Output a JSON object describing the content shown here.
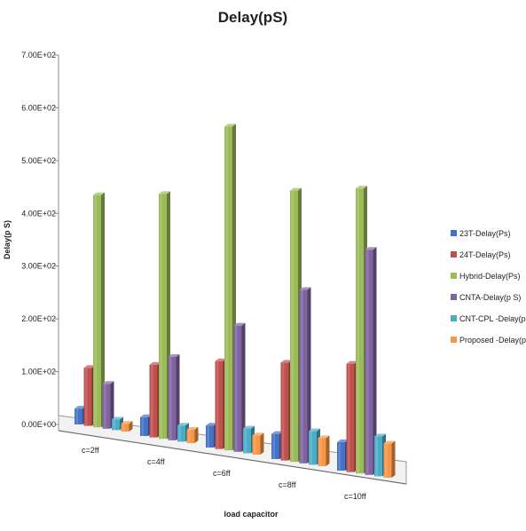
{
  "chart_data": {
    "type": "bar",
    "title": "Delay(pS)",
    "xlabel": "load capacitor",
    "ylabel": "Delay(p S)",
    "ylim": [
      0,
      700
    ],
    "y_ticks": [
      "0.00E+00",
      "1.00E+02",
      "2.00E+02",
      "3.00E+02",
      "4.00E+02",
      "5.00E+02",
      "6.00E+02",
      "7.00E+02"
    ],
    "categories": [
      "c=2ff",
      "c=4ff",
      "c=6ff",
      "c=8ff",
      "c=10ff"
    ],
    "series": [
      {
        "name": "23T-Delay(Ps)",
        "color": "#4472c4",
        "values": [
          30,
          35,
          40,
          45,
          50
        ]
      },
      {
        "name": "24T-Delay(Ps)",
        "color": "#c0504d",
        "values": [
          110,
          135,
          160,
          175,
          190
        ]
      },
      {
        "name": "Hybrid-Delay(Ps)",
        "color": "#9bbb59",
        "values": [
          440,
          455,
          590,
          485,
          500
        ]
      },
      {
        "name": "CNTA-Delay(p S)",
        "color": "#8064a2",
        "values": [
          85,
          155,
          230,
          310,
          395
        ]
      },
      {
        "name": "CNT-CPL -Delay(p S)",
        "color": "#4bacc6",
        "values": [
          20,
          30,
          45,
          60,
          70
        ]
      },
      {
        "name": "Proposed -Delay(p S)",
        "color": "#f79646",
        "values": [
          15,
          25,
          35,
          50,
          60
        ]
      }
    ],
    "grid": false,
    "legend_position": "right",
    "style": "3d-clustered-column"
  }
}
